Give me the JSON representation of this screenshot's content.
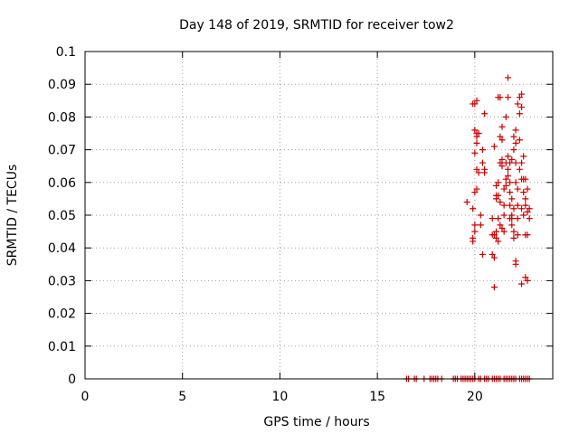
{
  "chart_data": {
    "type": "scatter",
    "title": "Day 148 of 2019, SRMTID for receiver tow2",
    "xlabel": "GPS time / hours",
    "ylabel": "SRMTID / TECUs",
    "xlim": [
      0,
      24
    ],
    "ylim": [
      0,
      0.1
    ],
    "xticks": [
      0,
      5,
      10,
      15,
      20
    ],
    "xtick_labels": [
      "0",
      "5",
      "10",
      "15",
      "20"
    ],
    "yticks": [
      0,
      0.01,
      0.02,
      0.03,
      0.04,
      0.05,
      0.06,
      0.07,
      0.08,
      0.09,
      0.1
    ],
    "ytick_labels": [
      "0",
      "0.01",
      "0.02",
      "0.03",
      "0.04",
      "0.05",
      "0.06",
      "0.07",
      "0.08",
      "0.09",
      "0.1"
    ],
    "grid": true,
    "marker": "+",
    "marker_color": "#cc0000",
    "grid_color": "#a0a0a0",
    "series": [
      {
        "name": "SRMTID",
        "points": [
          [
            16.5,
            0
          ],
          [
            16.6,
            0
          ],
          [
            16.9,
            0
          ],
          [
            17.0,
            0
          ],
          [
            17.4,
            0
          ],
          [
            17.7,
            0
          ],
          [
            17.8,
            0
          ],
          [
            17.9,
            0
          ],
          [
            18.0,
            0
          ],
          [
            18.1,
            0
          ],
          [
            18.3,
            0
          ],
          [
            18.9,
            0
          ],
          [
            19.0,
            0
          ],
          [
            19.1,
            0
          ],
          [
            19.3,
            0
          ],
          [
            19.4,
            0
          ],
          [
            19.5,
            0
          ],
          [
            19.6,
            0
          ],
          [
            19.7,
            0
          ],
          [
            19.8,
            0
          ],
          [
            19.9,
            0
          ],
          [
            20.0,
            0
          ],
          [
            20.2,
            0
          ],
          [
            20.3,
            0
          ],
          [
            20.5,
            0
          ],
          [
            20.6,
            0
          ],
          [
            20.7,
            0
          ],
          [
            20.9,
            0
          ],
          [
            21.0,
            0
          ],
          [
            21.1,
            0
          ],
          [
            21.2,
            0
          ],
          [
            21.3,
            0
          ],
          [
            21.5,
            0
          ],
          [
            21.6,
            0
          ],
          [
            21.7,
            0
          ],
          [
            21.8,
            0
          ],
          [
            21.9,
            0
          ],
          [
            22.0,
            0
          ],
          [
            22.1,
            0
          ],
          [
            22.3,
            0
          ],
          [
            22.4,
            0
          ],
          [
            22.5,
            0
          ],
          [
            22.6,
            0
          ],
          [
            22.7,
            0
          ],
          [
            22.8,
            0
          ],
          [
            19.6,
            0.054
          ],
          [
            19.9,
            0.052
          ],
          [
            19.9,
            0.043
          ],
          [
            19.9,
            0.042
          ],
          [
            20.0,
            0.045
          ],
          [
            20.0,
            0.047
          ],
          [
            20.0,
            0.069
          ],
          [
            19.9,
            0.084
          ],
          [
            20.0,
            0.084
          ],
          [
            20.1,
            0.085
          ],
          [
            20.0,
            0.076
          ],
          [
            20.1,
            0.075
          ],
          [
            20.1,
            0.074
          ],
          [
            20.2,
            0.075
          ],
          [
            20.1,
            0.072
          ],
          [
            20.1,
            0.064
          ],
          [
            20.2,
            0.063
          ],
          [
            20.0,
            0.057
          ],
          [
            20.1,
            0.058
          ],
          [
            20.3,
            0.047
          ],
          [
            20.3,
            0.05
          ],
          [
            20.4,
            0.07
          ],
          [
            20.4,
            0.066
          ],
          [
            20.5,
            0.064
          ],
          [
            20.5,
            0.063
          ],
          [
            20.4,
            0.038
          ],
          [
            20.5,
            0.081
          ],
          [
            20.9,
            0.044
          ],
          [
            20.9,
            0.049
          ],
          [
            20.9,
            0.038
          ],
          [
            21.0,
            0.037
          ],
          [
            21.0,
            0.028
          ],
          [
            21.0,
            0.044
          ],
          [
            21.1,
            0.043
          ],
          [
            21.1,
            0.045
          ],
          [
            21.2,
            0.042
          ],
          [
            21.2,
            0.049
          ],
          [
            21.1,
            0.056
          ],
          [
            21.1,
            0.055
          ],
          [
            21.1,
            0.059
          ],
          [
            21.2,
            0.056
          ],
          [
            21.2,
            0.06
          ],
          [
            21.0,
            0.071
          ],
          [
            21.2,
            0.086
          ],
          [
            21.3,
            0.086
          ],
          [
            21.3,
            0.074
          ],
          [
            21.4,
            0.073
          ],
          [
            21.4,
            0.077
          ],
          [
            21.3,
            0.066
          ],
          [
            21.4,
            0.067
          ],
          [
            21.4,
            0.065
          ],
          [
            21.3,
            0.054
          ],
          [
            21.3,
            0.047
          ],
          [
            21.4,
            0.046
          ],
          [
            21.5,
            0.045
          ],
          [
            21.5,
            0.053
          ],
          [
            21.5,
            0.058
          ],
          [
            21.5,
            0.05
          ],
          [
            21.6,
            0.059
          ],
          [
            21.6,
            0.061
          ],
          [
            21.6,
            0.066
          ],
          [
            21.7,
            0.064
          ],
          [
            21.7,
            0.068
          ],
          [
            21.6,
            0.08
          ],
          [
            21.7,
            0.086
          ],
          [
            21.7,
            0.092
          ],
          [
            21.7,
            0.062
          ],
          [
            21.8,
            0.066
          ],
          [
            21.8,
            0.06
          ],
          [
            21.8,
            0.057
          ],
          [
            21.8,
            0.053
          ],
          [
            21.9,
            0.055
          ],
          [
            21.9,
            0.05
          ],
          [
            21.9,
            0.049
          ],
          [
            22.0,
            0.052
          ],
          [
            21.8,
            0.049
          ],
          [
            21.9,
            0.047
          ],
          [
            22.0,
            0.045
          ],
          [
            22.0,
            0.043
          ],
          [
            21.9,
            0.067
          ],
          [
            22.0,
            0.07
          ],
          [
            22.0,
            0.074
          ],
          [
            22.1,
            0.072
          ],
          [
            22.1,
            0.076
          ],
          [
            22.1,
            0.066
          ],
          [
            22.1,
            0.06
          ],
          [
            22.2,
            0.058
          ],
          [
            22.2,
            0.049
          ],
          [
            22.1,
            0.036
          ],
          [
            22.1,
            0.035
          ],
          [
            22.2,
            0.044
          ],
          [
            22.2,
            0.053
          ],
          [
            22.2,
            0.084
          ],
          [
            22.3,
            0.086
          ],
          [
            22.4,
            0.087
          ],
          [
            22.3,
            0.081
          ],
          [
            22.4,
            0.083
          ],
          [
            22.3,
            0.073
          ],
          [
            22.3,
            0.064
          ],
          [
            22.4,
            0.066
          ],
          [
            22.4,
            0.061
          ],
          [
            22.5,
            0.061
          ],
          [
            22.5,
            0.057
          ],
          [
            22.4,
            0.052
          ],
          [
            22.5,
            0.05
          ],
          [
            22.6,
            0.053
          ],
          [
            22.6,
            0.055
          ],
          [
            22.6,
            0.061
          ],
          [
            22.7,
            0.058
          ],
          [
            22.7,
            0.051
          ],
          [
            22.6,
            0.044
          ],
          [
            22.7,
            0.044
          ],
          [
            22.4,
            0.029
          ],
          [
            22.6,
            0.031
          ],
          [
            22.7,
            0.03
          ],
          [
            22.8,
            0.049
          ],
          [
            22.8,
            0.052
          ],
          [
            22.5,
            0.068
          ]
        ]
      }
    ]
  }
}
